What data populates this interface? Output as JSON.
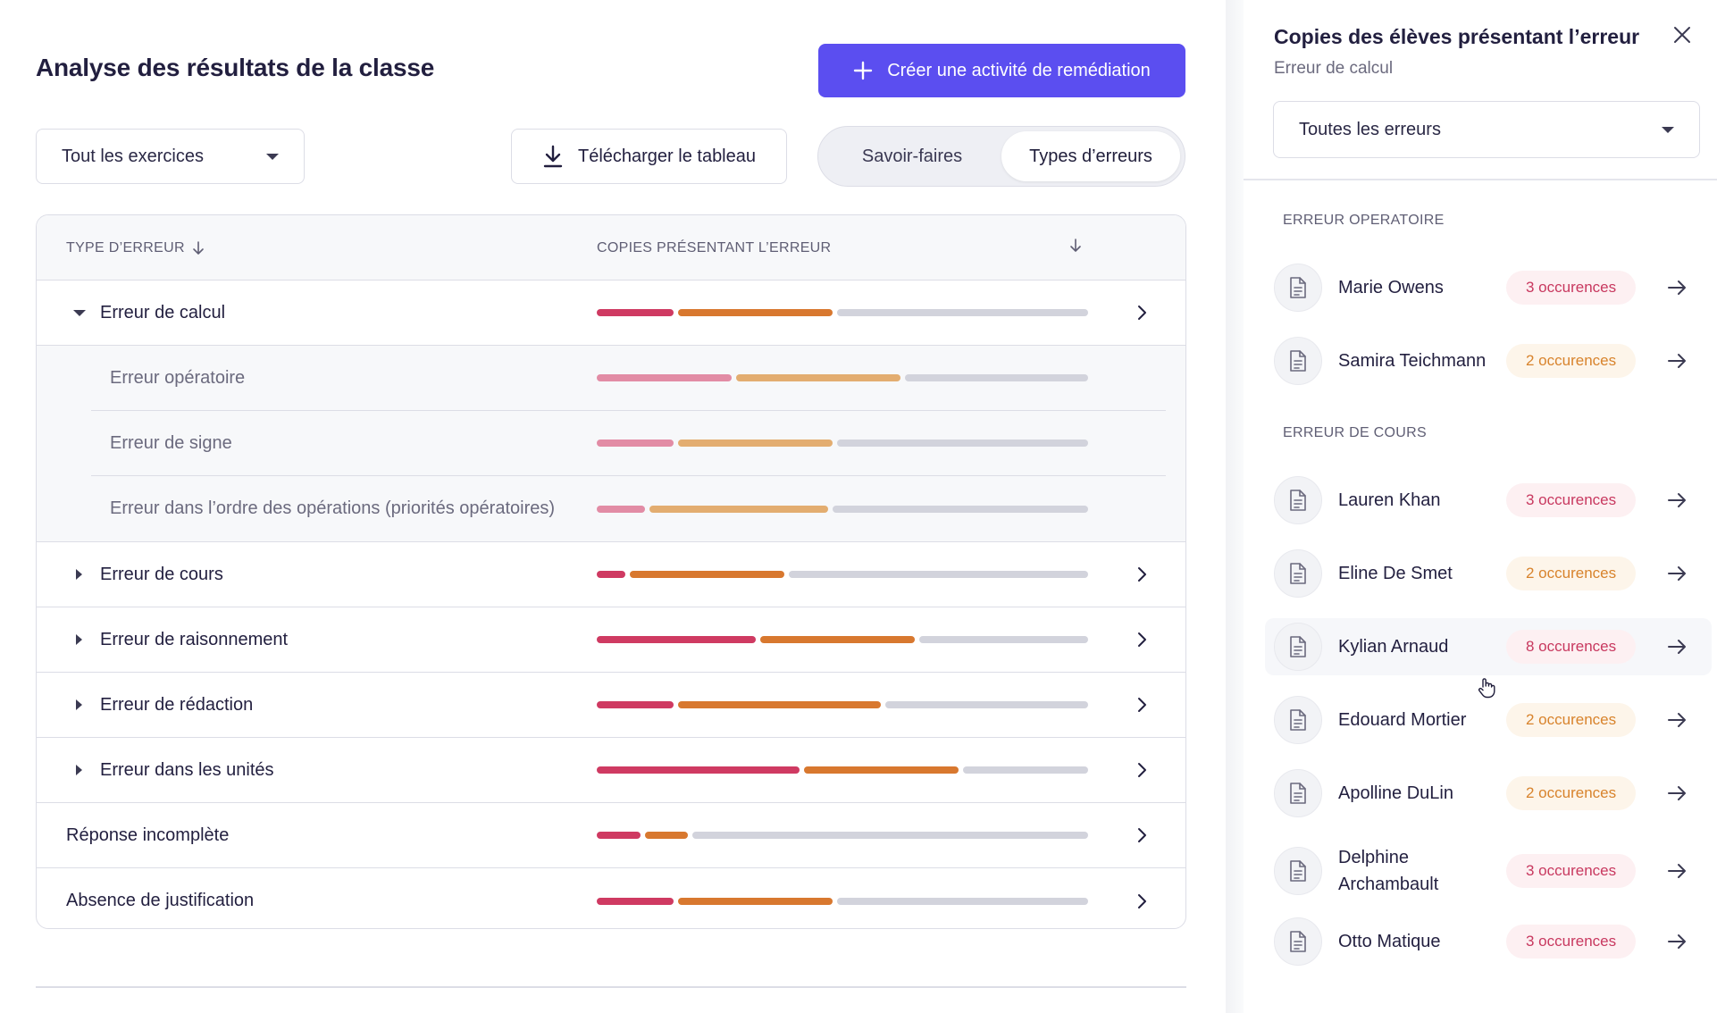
{
  "colors": {
    "accent": "#5b4ef0",
    "bar_red": "#cf3a62",
    "bar_orange": "#d8782f",
    "bar_gray": "#d2d3dc",
    "bar_red_light": "#e28ca5",
    "bar_orange_light": "#e3ad70"
  },
  "main": {
    "title": "Analyse des résultats de la classe",
    "create_button": "Créer une activité de remédiation",
    "exercise_select": "Tout les exercices",
    "download_button": "Télécharger le tableau",
    "toggle": {
      "options": [
        "Savoir-faires",
        "Types d’erreurs"
      ],
      "active": "Types d’erreurs"
    }
  },
  "table": {
    "headers": {
      "type": "TYPE D’ERREUR",
      "copies": "COPIES PRÉSENTANT L’ERREUR"
    },
    "rows": [
      {
        "label": "Erreur de calcul",
        "state": "expanded",
        "bars": [
          0.16,
          0.32,
          0.52
        ],
        "children": [
          {
            "label": "Erreur opératoire",
            "bars": [
              0.28,
              0.34,
              0.38
            ]
          },
          {
            "label": "Erreur de signe",
            "bars": [
              0.16,
              0.32,
              0.52
            ]
          },
          {
            "label": "Erreur dans l’ordre des opérations (priorités opératoires)",
            "bars": [
              0.1,
              0.37,
              0.53
            ]
          }
        ]
      },
      {
        "label": "Erreur de cours",
        "state": "collapsed",
        "bars": [
          0.06,
          0.32,
          0.62
        ]
      },
      {
        "label": "Erreur de raisonnement",
        "state": "collapsed",
        "bars": [
          0.33,
          0.32,
          0.35
        ]
      },
      {
        "label": "Erreur de rédaction",
        "state": "collapsed",
        "bars": [
          0.16,
          0.42,
          0.42
        ]
      },
      {
        "label": "Erreur dans les unités",
        "state": "collapsed",
        "bars": [
          0.42,
          0.32,
          0.26
        ]
      },
      {
        "label": "Réponse incomplète",
        "state": "none",
        "bars": [
          0.09,
          0.09,
          0.82
        ]
      },
      {
        "label": "Absence de justification",
        "state": "none",
        "bars": [
          0.16,
          0.32,
          0.52
        ]
      }
    ]
  },
  "side": {
    "title": "Copies des élèves présentant l’erreur",
    "subtitle": "Erreur de calcul",
    "filter": "Toutes les erreurs",
    "sections": [
      {
        "title": "ERREUR OPERATOIRE",
        "students": [
          {
            "name": "Marie Owens",
            "badge": "3 occurences",
            "tone": "red"
          },
          {
            "name": "Samira Teichmann",
            "badge": "2 occurences",
            "tone": "orange"
          }
        ]
      },
      {
        "title": "ERREUR DE COURS",
        "students": [
          {
            "name": "Lauren Khan",
            "badge": "3 occurences",
            "tone": "red"
          },
          {
            "name": "Eline De Smet",
            "badge": "2 occurences",
            "tone": "orange"
          },
          {
            "name": "Kylian Arnaud",
            "badge": "8 occurences",
            "tone": "red",
            "hover": true
          },
          {
            "name": "Edouard Mortier",
            "badge": "2 occurences",
            "tone": "orange"
          },
          {
            "name": "Apolline DuLin",
            "badge": "2 occurences",
            "tone": "orange"
          },
          {
            "name": "Delphine Archambault",
            "badge": "3 occurences",
            "tone": "red"
          },
          {
            "name": "Otto Matique",
            "badge": "3 occurences",
            "tone": "red"
          }
        ]
      }
    ]
  }
}
